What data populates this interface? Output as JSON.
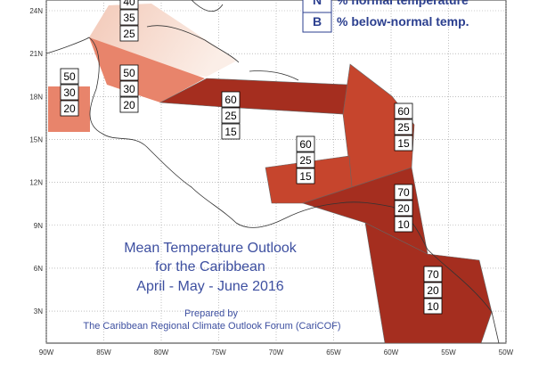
{
  "map": {
    "lat_labels": [
      "24N",
      "21N",
      "18N",
      "15N",
      "12N",
      "9N",
      "6N",
      "3N"
    ],
    "lon_labels": [
      "90W",
      "85W",
      "80W",
      "75W",
      "70W",
      "65W",
      "60W",
      "55W",
      "50W"
    ],
    "legend": [
      {
        "key": "N",
        "label": "% normal temperature"
      },
      {
        "key": "B",
        "label": "% below-normal temp."
      }
    ],
    "title": [
      "Mean Temperature Outlook",
      "for the Caribbean",
      "April - May - June 2016"
    ],
    "credit": [
      "Prepared by",
      "The Caribbean Regional Climate Outlook Forum (CariCOF)"
    ],
    "regions": [
      {
        "values": [
          40,
          35,
          25
        ]
      },
      {
        "values": [
          50,
          30,
          20
        ]
      },
      {
        "values": [
          50,
          30,
          20
        ]
      },
      {
        "values": [
          60,
          25,
          15
        ]
      },
      {
        "values": [
          60,
          25,
          15
        ]
      },
      {
        "values": [
          60,
          25,
          15
        ]
      },
      {
        "values": [
          70,
          20,
          10
        ]
      },
      {
        "values": [
          70,
          20,
          10
        ]
      }
    ]
  }
}
